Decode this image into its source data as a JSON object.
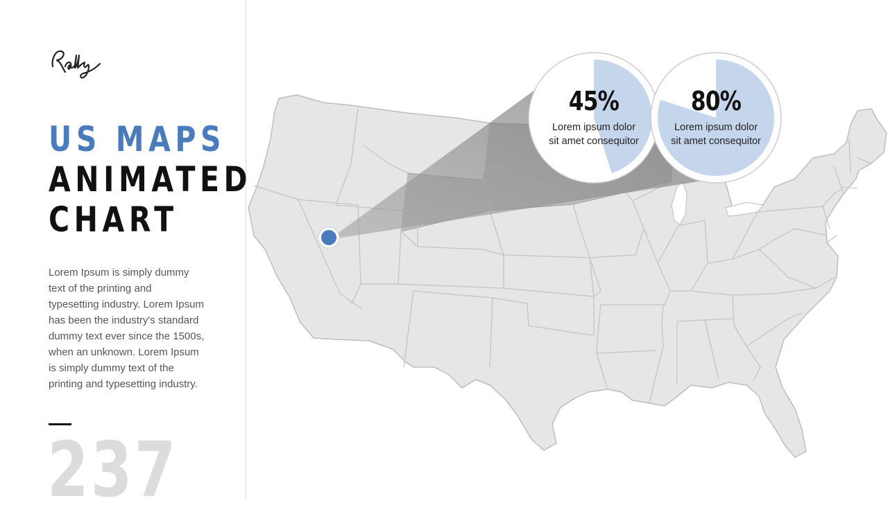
{
  "brand": {
    "logo_text": "Rally"
  },
  "title": {
    "line1": "US MAPS",
    "line2": "ANIMATED",
    "line3": "CHART"
  },
  "body_text": "Lorem Ipsum is simply dummy text of the printing and typesetting industry. Lorem Ipsum has been the industry's standard dummy text ever since the 1500s, when an unknown. Lorem Ipsum is simply dummy text of the printing and typesetting industry.",
  "page_number": "237",
  "map": {
    "region": "Contiguous United States",
    "marker_state": "Nevada",
    "highlighted_states": [
      "Wyoming",
      "South Dakota",
      "Nebraska",
      "Minnesota",
      "Montana",
      "North Dakota"
    ]
  },
  "stats": [
    {
      "value": "45%",
      "fraction": 0.45,
      "label_line1": "Lorem ipsum dolor",
      "label_line2": "sit amet consequitor"
    },
    {
      "value": "80%",
      "fraction": 0.8,
      "label_line1": "Lorem ipsum dolor",
      "label_line2": "sit amet consequitor"
    }
  ],
  "colors": {
    "accent": "#4a7bbd",
    "pie_fill": "#c5d5eb",
    "map_fill": "#e6e6e6",
    "map_stroke": "#bdbdbd",
    "title_dark": "#111111",
    "page_number": "#dcdcdc"
  }
}
